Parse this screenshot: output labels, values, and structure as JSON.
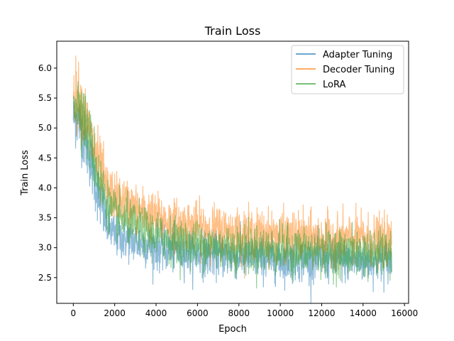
{
  "chart_data": {
    "type": "line",
    "title": "Train Loss",
    "xlabel": "Epoch",
    "ylabel": "Train Loss",
    "xlim": [
      -800,
      16200
    ],
    "ylim": [
      2.07,
      6.45
    ],
    "xticks": [
      0,
      2000,
      4000,
      6000,
      8000,
      10000,
      12000,
      14000,
      16000
    ],
    "xtick_labels": [
      "0",
      "2000",
      "4000",
      "6000",
      "8000",
      "10000",
      "12000",
      "14000",
      "16000"
    ],
    "yticks": [
      2.5,
      3.0,
      3.5,
      4.0,
      4.5,
      5.0,
      5.5,
      6.0
    ],
    "ytick_labels": [
      "2.5",
      "3.0",
      "3.5",
      "4.0",
      "4.5",
      "5.0",
      "5.5",
      "6.0"
    ],
    "grid": false,
    "legend_position": "top-right",
    "x_max": 15380,
    "series": [
      {
        "name": "Adapter Tuning",
        "color": "#1f77b4",
        "alpha": 0.5,
        "noise": 0.18,
        "trend": [
          [
            0,
            5.2
          ],
          [
            300,
            5.1
          ],
          [
            800,
            4.5
          ],
          [
            1200,
            3.9
          ],
          [
            1600,
            3.4
          ],
          [
            2000,
            3.2
          ],
          [
            3000,
            3.1
          ],
          [
            4000,
            3.0
          ],
          [
            5000,
            2.95
          ],
          [
            6000,
            2.9
          ],
          [
            8000,
            2.85
          ],
          [
            10000,
            2.8
          ],
          [
            12000,
            2.8
          ],
          [
            14000,
            2.78
          ],
          [
            15380,
            2.78
          ]
        ]
      },
      {
        "name": "Decoder Tuning",
        "color": "#ff7f0e",
        "alpha": 0.5,
        "noise": 0.2,
        "trend": [
          [
            0,
            5.6
          ],
          [
            300,
            5.5
          ],
          [
            800,
            4.9
          ],
          [
            1200,
            4.4
          ],
          [
            1600,
            4.0
          ],
          [
            2000,
            3.85
          ],
          [
            3000,
            3.65
          ],
          [
            4000,
            3.5
          ],
          [
            5000,
            3.4
          ],
          [
            6000,
            3.35
          ],
          [
            8000,
            3.25
          ],
          [
            10000,
            3.2
          ],
          [
            12000,
            3.15
          ],
          [
            14000,
            3.15
          ],
          [
            15380,
            3.1
          ]
        ]
      },
      {
        "name": "LoRA",
        "color": "#2ca02c",
        "alpha": 0.5,
        "noise": 0.19,
        "trend": [
          [
            0,
            5.5
          ],
          [
            300,
            5.4
          ],
          [
            800,
            4.8
          ],
          [
            1200,
            4.2
          ],
          [
            1600,
            3.75
          ],
          [
            2000,
            3.55
          ],
          [
            3000,
            3.35
          ],
          [
            4000,
            3.2
          ],
          [
            5000,
            3.1
          ],
          [
            6000,
            3.05
          ],
          [
            8000,
            2.98
          ],
          [
            10000,
            2.95
          ],
          [
            12000,
            2.92
          ],
          [
            14000,
            2.9
          ],
          [
            15380,
            2.88
          ]
        ]
      }
    ]
  }
}
